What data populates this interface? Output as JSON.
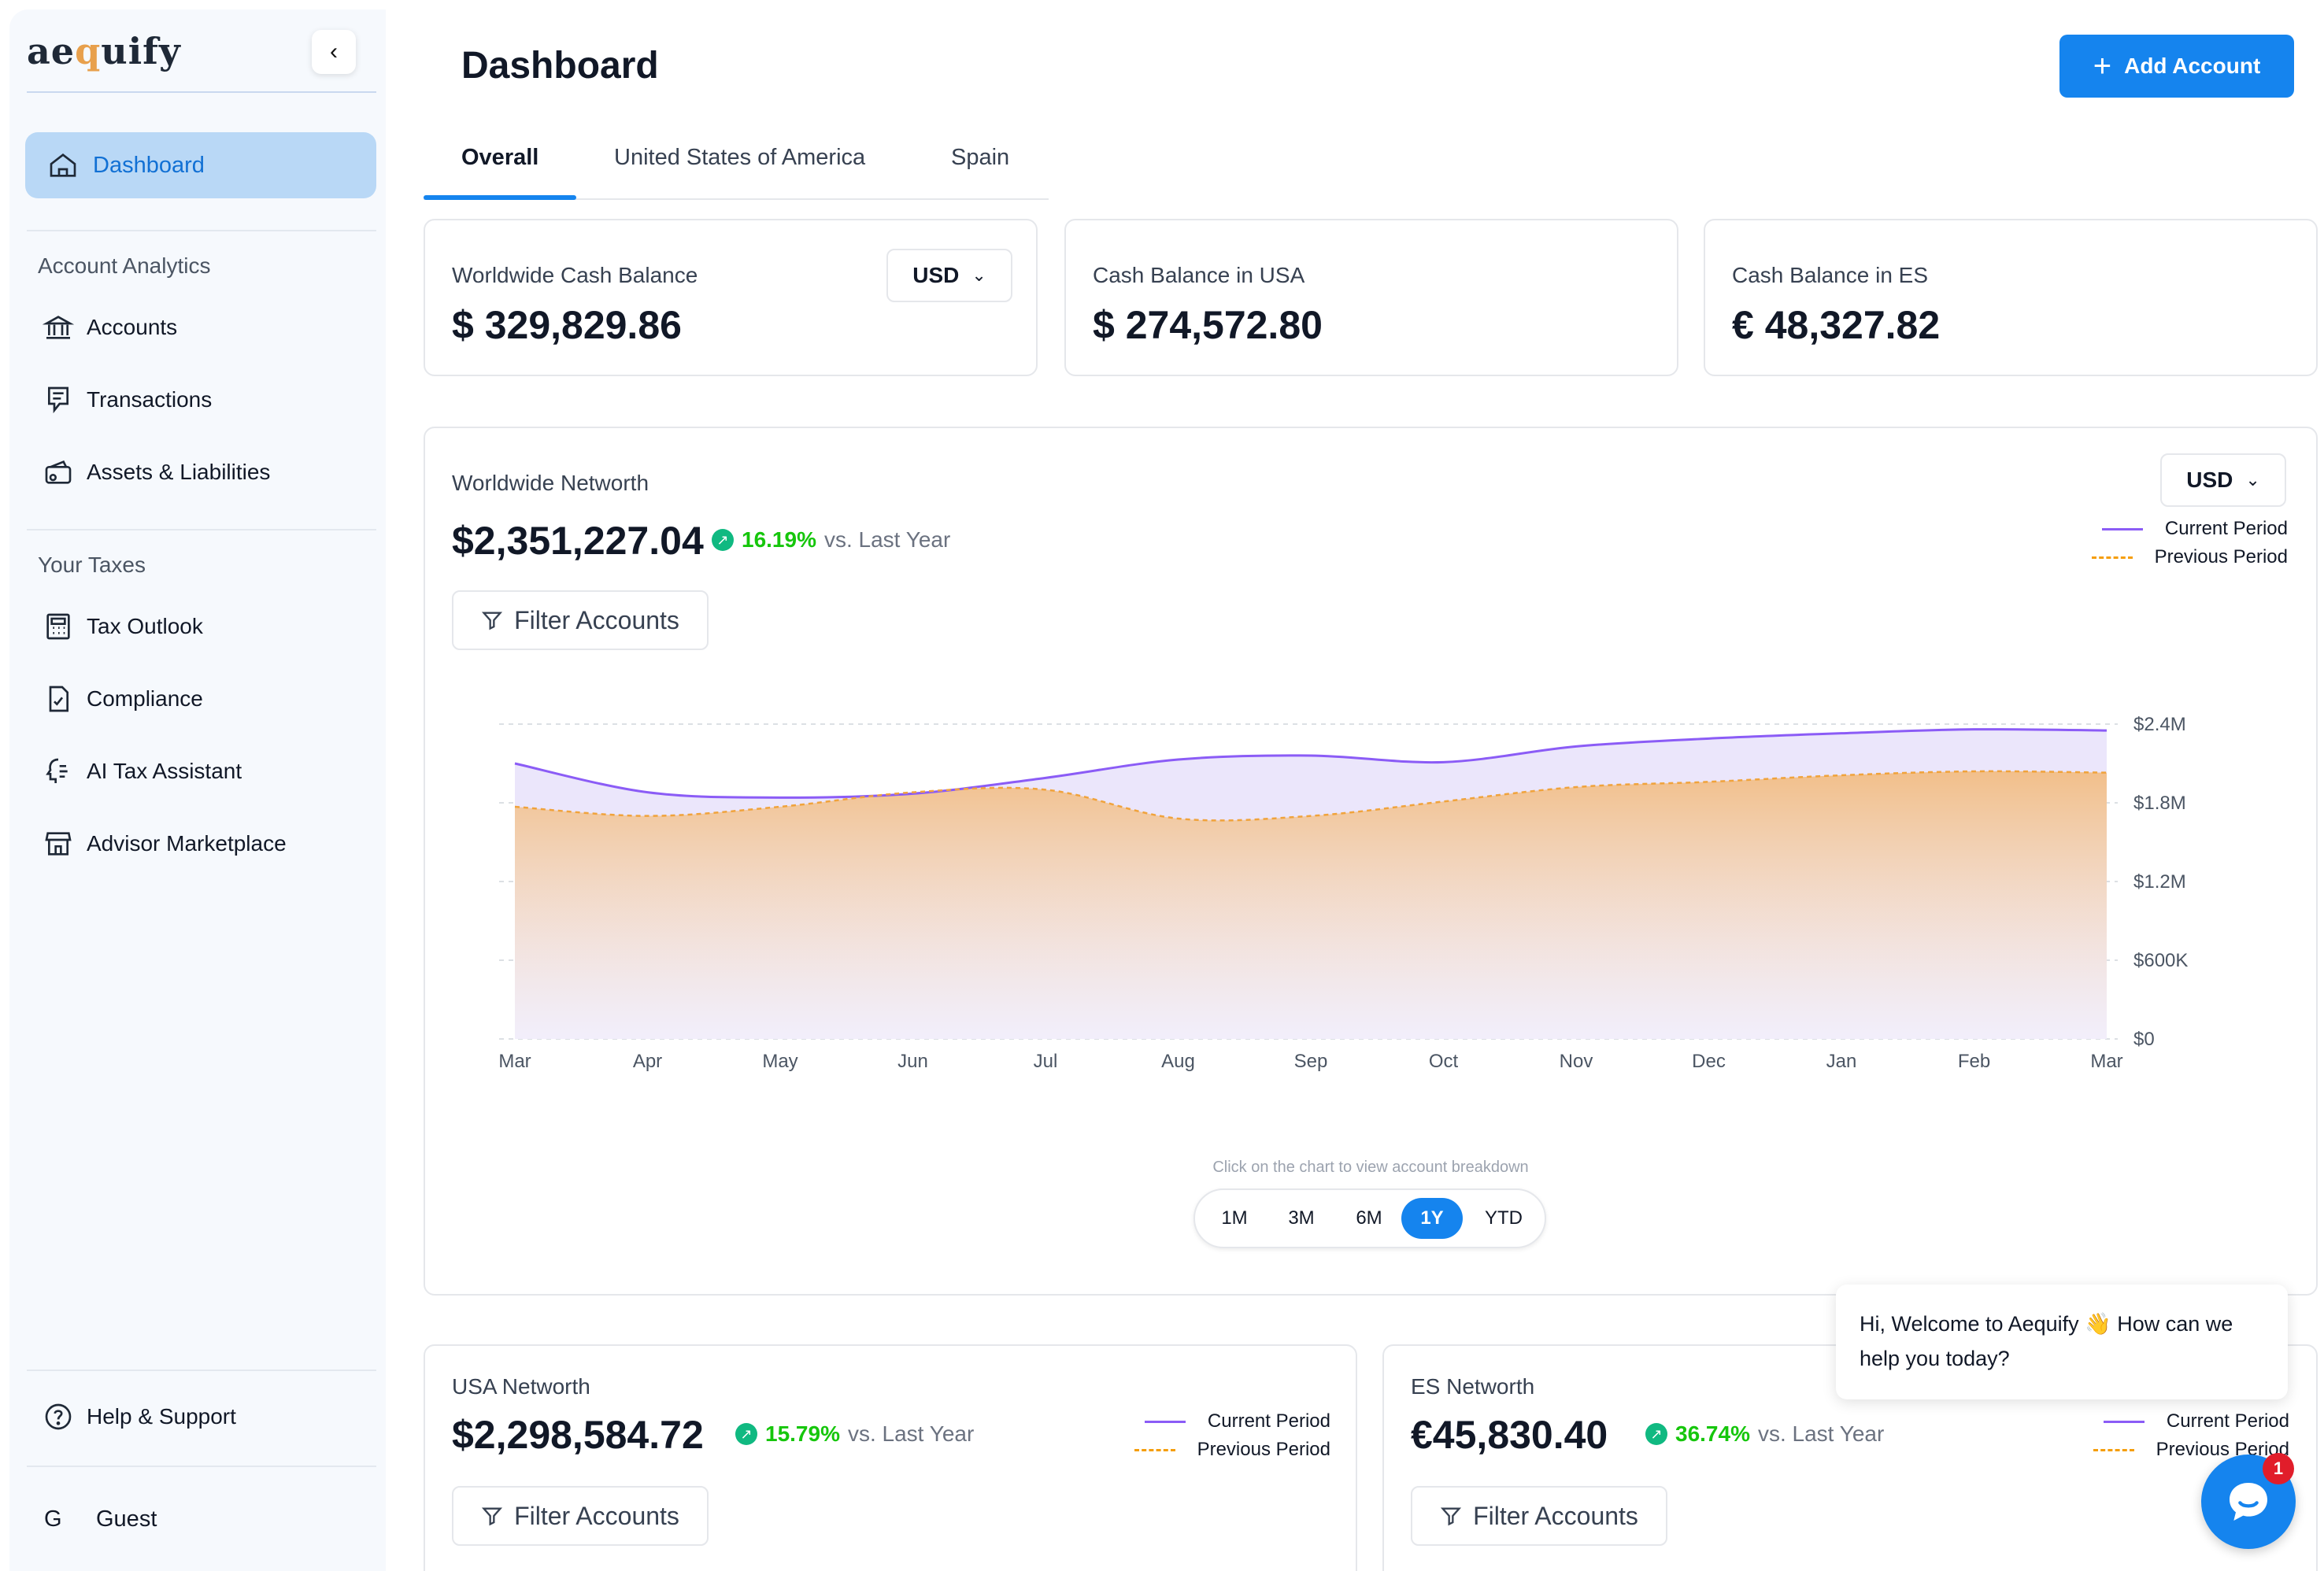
{
  "app": {
    "logo_pre": "ae",
    "logo_q": "q",
    "logo_post": "uify"
  },
  "sidebar": {
    "dashboard_label": "Dashboard",
    "section1_title": "Account Analytics",
    "section1_items": [
      {
        "label": "Accounts",
        "icon": "bank-icon"
      },
      {
        "label": "Transactions",
        "icon": "receipt-icon"
      },
      {
        "label": "Assets & Liabilities",
        "icon": "wallet-icon"
      }
    ],
    "section2_title": "Your Taxes",
    "section2_items": [
      {
        "label": "Tax Outlook",
        "icon": "calculator-icon"
      },
      {
        "label": "Compliance",
        "icon": "document-check-icon"
      },
      {
        "label": "AI Tax Assistant",
        "icon": "ai-assistant-icon"
      },
      {
        "label": "Advisor Marketplace",
        "icon": "store-icon"
      }
    ],
    "help_label": "Help & Support",
    "user_initial": "G",
    "user_name": "Guest"
  },
  "header": {
    "title": "Dashboard",
    "add_button_label": "Add Account"
  },
  "tabs": [
    {
      "label": "Overall",
      "active": true
    },
    {
      "label": "United States of America",
      "active": false
    },
    {
      "label": "Spain",
      "active": false
    }
  ],
  "balance_cards": [
    {
      "label": "Worldwide Cash Balance",
      "value": "$ 329,829.86",
      "currency": "USD"
    },
    {
      "label": "Cash Balance in USA",
      "value": "$ 274,572.80"
    },
    {
      "label": "Cash Balance in ES",
      "value": "€ 48,327.82"
    }
  ],
  "worldwide": {
    "label": "Worldwide Networth",
    "value": "$2,351,227.04",
    "change_pct": "16.19%",
    "change_vs": "vs. Last Year",
    "currency": "USD",
    "filter_label": "Filter Accounts",
    "legend_current": "Current Period",
    "legend_previous": "Previous Period",
    "hint": "Click on the chart to view account breakdown",
    "ranges": [
      "1M",
      "3M",
      "6M",
      "1Y",
      "YTD"
    ],
    "active_range": "1Y"
  },
  "chart_data": {
    "type": "area",
    "x": [
      "Mar",
      "Apr",
      "May",
      "Jun",
      "Jul",
      "Aug",
      "Sep",
      "Oct",
      "Nov",
      "Dec",
      "Jan",
      "Feb",
      "Mar"
    ],
    "yticks": [
      "$0",
      "$600K",
      "$1.2M",
      "$1.8M",
      "$2.4M"
    ],
    "ylim": [
      0,
      2400000
    ],
    "grid": true,
    "legend": "top-right",
    "series": [
      {
        "name": "Current Period",
        "color": "#8b5cf6",
        "values": [
          2100000,
          1880000,
          1840000,
          1870000,
          1990000,
          2130000,
          2160000,
          2110000,
          2230000,
          2290000,
          2330000,
          2360000,
          2351227
        ]
      },
      {
        "name": "Previous Period",
        "color": "#f59e0b",
        "values": [
          1770000,
          1700000,
          1770000,
          1880000,
          1900000,
          1680000,
          1700000,
          1810000,
          1920000,
          1960000,
          2010000,
          2040000,
          2030000
        ]
      }
    ]
  },
  "usa": {
    "label": "USA Networth",
    "value": "$2,298,584.72",
    "change_pct": "15.79%",
    "change_vs": "vs. Last Year",
    "filter_label": "Filter Accounts",
    "legend_current": "Current Period",
    "legend_previous": "Previous Period"
  },
  "es": {
    "label": "ES Networth",
    "value": "€45,830.40",
    "change_pct": "36.74%",
    "change_vs": "vs. Last Year",
    "filter_label": "Filter Accounts",
    "legend_current": "Current Period",
    "legend_previous": "Previous Period"
  },
  "chat": {
    "message": "Hi, Welcome to Aequify 👋 How can we help you today?",
    "badge": "1"
  }
}
